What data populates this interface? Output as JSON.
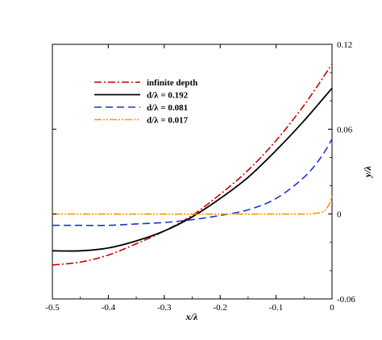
{
  "chart_data": {
    "type": "line",
    "xlabel": "x/λ",
    "ylabel": "y/λ",
    "xlim": [
      -0.5,
      0
    ],
    "ylim": [
      -0.06,
      0.12
    ],
    "xticks": [
      -0.5,
      -0.4,
      -0.3,
      -0.2,
      -0.1,
      0
    ],
    "xtick_labels": [
      "-0.5",
      "-0.4",
      "-0.3",
      "-0.2",
      "-0.1",
      "0"
    ],
    "yticks": [
      -0.06,
      0,
      0.06,
      0.12
    ],
    "ytick_labels": [
      "-0.06",
      "0",
      "0.06",
      "0.12"
    ],
    "y_axis_position": "right",
    "grid": false,
    "legend_position": "top-left",
    "series": [
      {
        "name": "infinite depth",
        "color": "#cc0000",
        "dash": "dash-dot",
        "x": [
          -0.5,
          -0.45,
          -0.4,
          -0.35,
          -0.3,
          -0.25,
          -0.2,
          -0.15,
          -0.1,
          -0.05,
          0
        ],
        "y": [
          -0.036,
          -0.034,
          -0.029,
          -0.021,
          -0.012,
          -0.001,
          0.014,
          0.031,
          0.052,
          0.077,
          0.106
        ]
      },
      {
        "name": "d/λ = 0.192",
        "color": "#000000",
        "dash": "solid",
        "x": [
          -0.5,
          -0.45,
          -0.4,
          -0.35,
          -0.3,
          -0.25,
          -0.2,
          -0.15,
          -0.1,
          -0.05,
          0
        ],
        "y": [
          -0.026,
          -0.026,
          -0.024,
          -0.019,
          -0.012,
          -0.002,
          0.011,
          0.026,
          0.045,
          0.066,
          0.089
        ]
      },
      {
        "name": "d/λ = 0.081",
        "color": "#2233cc",
        "dash": "dashed",
        "x": [
          -0.5,
          -0.45,
          -0.4,
          -0.35,
          -0.3,
          -0.25,
          -0.2,
          -0.15,
          -0.1,
          -0.05,
          -0.02,
          0
        ],
        "y": [
          -0.008,
          -0.008,
          -0.008,
          -0.007,
          -0.006,
          -0.004,
          -0.001,
          0.003,
          0.011,
          0.026,
          0.04,
          0.053
        ]
      },
      {
        "name": "d/λ = 0.017",
        "color": "#ff9900",
        "dash": "dash-dot-dot",
        "x": [
          -0.5,
          -0.4,
          -0.3,
          -0.2,
          -0.1,
          -0.05,
          -0.03,
          -0.015,
          -0.005,
          0
        ],
        "y": [
          0,
          0,
          0,
          0,
          0,
          0,
          0.0005,
          0.002,
          0.007,
          0.013
        ]
      }
    ]
  }
}
